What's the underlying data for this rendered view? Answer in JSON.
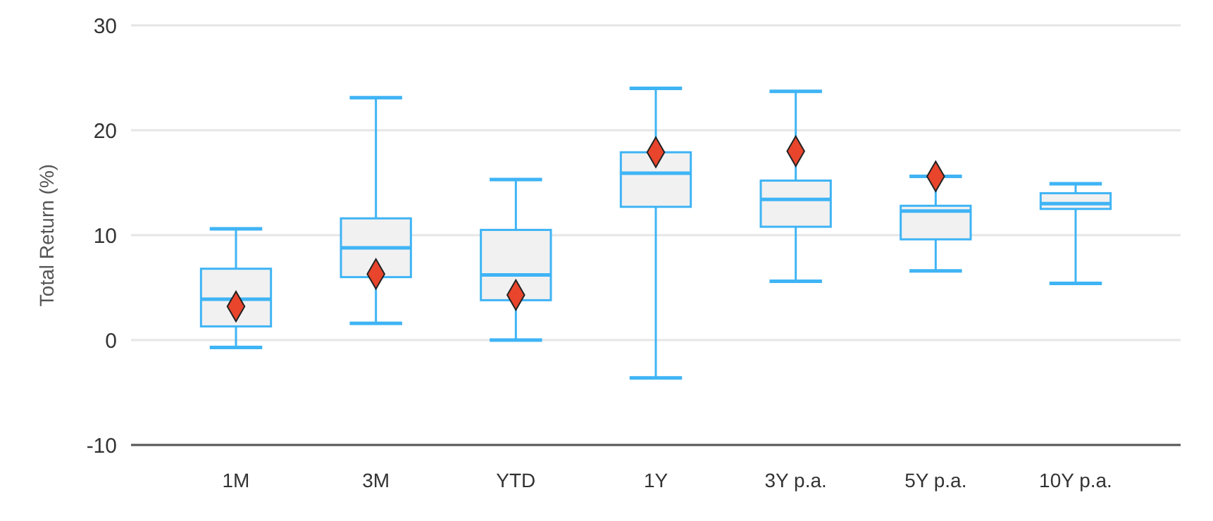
{
  "chart_data": {
    "type": "box",
    "ylabel": "Total Return (%)",
    "categories": [
      "1M",
      "3M",
      "YTD",
      "1Y",
      "3Y p.a.",
      "5Y p.a.",
      "10Y p.a."
    ],
    "ylim": [
      -10,
      30
    ],
    "yticks": [
      -10,
      0,
      10,
      20,
      30
    ],
    "grid": "y",
    "color": "#3fb4f5",
    "boxes": [
      {
        "low": -0.7,
        "q1": 1.3,
        "median": 3.9,
        "q3": 6.8,
        "high": 10.6
      },
      {
        "low": 1.6,
        "q1": 6.0,
        "median": 8.8,
        "q3": 11.6,
        "high": 23.1
      },
      {
        "low": 0,
        "q1": 3.8,
        "median": 6.2,
        "q3": 10.5,
        "high": 15.3
      },
      {
        "low": -3.6,
        "q1": 12.7,
        "median": 15.9,
        "q3": 17.9,
        "high": 24.0
      },
      {
        "low": 5.6,
        "q1": 10.8,
        "median": 13.4,
        "q3": 15.2,
        "high": 23.7
      },
      {
        "low": 6.6,
        "q1": 9.6,
        "median": 12.3,
        "q3": 12.8,
        "high": 15.6
      },
      {
        "low": 5.4,
        "q1": 12.5,
        "median": 13.0,
        "q3": 14.0,
        "high": 14.9
      }
    ],
    "series": [
      {
        "type": "scatter",
        "color": "#e8452c",
        "marker": "diamond",
        "x": [
          "1M",
          "3M",
          "YTD",
          "1Y",
          "3Y p.a.",
          "5Y p.a."
        ],
        "values": [
          3.2,
          6.3,
          4.3,
          17.9,
          18.0,
          15.6
        ]
      }
    ]
  }
}
